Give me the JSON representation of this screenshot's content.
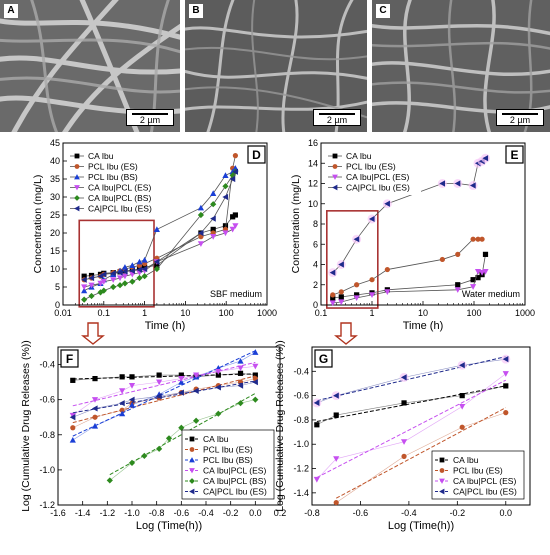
{
  "panels": [
    {
      "label": "A",
      "scale": "2 µm"
    },
    {
      "label": "B",
      "scale": "2 µm"
    },
    {
      "label": "C",
      "scale": "2 µm"
    }
  ],
  "colors": {
    "CA Ibu": "#000000",
    "PCL Ibu (ES)": "#c0562b",
    "PCL Ibu (BS)": "#1a3fd6",
    "CA Ibu|PCL (ES)": "#c64ff0",
    "CA Ibu|PCL (BS)": "#2d8a1e",
    "CA|PCL Ibu (ES)": "#1f2a8c",
    "highlight": "#a83232",
    "arrow": "#b0341f"
  },
  "chart_data": [
    {
      "panel": "D",
      "type": "line",
      "xlabel": "Time (h)",
      "ylabel": "Concentration (mg/L)",
      "xscale": "log",
      "xlim": [
        0.01,
        1000
      ],
      "ylim": [
        0,
        45
      ],
      "xticks": [
        0.01,
        0.1,
        1,
        10,
        100,
        1000
      ],
      "xtick_labels": [
        "0.01",
        "0.1",
        "1",
        "10",
        "100",
        "1000"
      ],
      "yticks": [
        0,
        5,
        10,
        15,
        20,
        25,
        30,
        35,
        40,
        45
      ],
      "annotation": "SBF medium",
      "legend_position": "top-left",
      "series": [
        {
          "name": "CA Ibu",
          "x": [
            0.033,
            0.05,
            0.083,
            0.1,
            0.17,
            0.25,
            0.33,
            0.5,
            0.75,
            1,
            2,
            24,
            48,
            96,
            144,
            168
          ],
          "y": [
            8,
            8.2,
            8.5,
            8.8,
            9,
            9.2,
            9.5,
            9.7,
            10,
            10.5,
            11,
            20,
            21,
            22,
            24.5,
            25
          ]
        },
        {
          "name": "PCL Ibu (ES)",
          "x": [
            0.033,
            0.05,
            0.083,
            0.1,
            0.17,
            0.25,
            0.33,
            0.5,
            0.75,
            1,
            2,
            24,
            48,
            96,
            144,
            168
          ],
          "y": [
            7,
            7.5,
            8,
            8.5,
            9,
            9.5,
            10,
            10.5,
            11,
            11.5,
            13,
            19,
            20,
            21,
            38,
            41.5
          ]
        },
        {
          "name": "PCL Ibu (BS)",
          "x": [
            0.033,
            0.05,
            0.083,
            0.1,
            0.17,
            0.25,
            0.33,
            0.5,
            0.75,
            1,
            2,
            24,
            48,
            96,
            144,
            168
          ],
          "y": [
            4,
            5,
            6,
            7,
            8.5,
            9.5,
            10.5,
            11,
            12,
            12.5,
            21,
            27,
            31,
            36,
            37,
            38
          ]
        },
        {
          "name": "CA Ibu|PCL (ES)",
          "x": [
            0.033,
            0.05,
            0.083,
            0.1,
            0.17,
            0.25,
            0.33,
            0.5,
            0.75,
            1,
            2,
            24,
            48,
            96,
            144,
            168
          ],
          "y": [
            5,
            5.5,
            6,
            6.5,
            7,
            7.5,
            8,
            8.5,
            9,
            9.5,
            12,
            17,
            19,
            20,
            21,
            22
          ]
        },
        {
          "name": "CA Ibu|PCL (BS)",
          "x": [
            0.033,
            0.05,
            0.083,
            0.1,
            0.17,
            0.25,
            0.33,
            0.5,
            0.75,
            1,
            2,
            24,
            48,
            96,
            144,
            168
          ],
          "y": [
            1.5,
            2.5,
            3.5,
            4,
            5,
            5.5,
            6,
            6.5,
            7.5,
            8,
            10,
            25,
            28,
            33,
            36,
            37
          ]
        },
        {
          "name": "CA|PCL Ibu (ES)",
          "x": [
            0.033,
            0.05,
            0.083,
            0.1,
            0.17,
            0.25,
            0.33,
            0.5,
            0.75,
            1,
            2,
            24,
            48,
            96,
            144,
            168
          ],
          "y": [
            7,
            7.5,
            8,
            8.5,
            8.8,
            9,
            9.3,
            9.5,
            9.8,
            10,
            12,
            20,
            24,
            30,
            35,
            37
          ]
        }
      ]
    },
    {
      "panel": "E",
      "type": "line",
      "xlabel": "Time (h)",
      "ylabel": "Concentration (mg/L)",
      "xscale": "log",
      "xlim": [
        0.1,
        1000
      ],
      "ylim": [
        0,
        16
      ],
      "xticks": [
        0.1,
        1,
        10,
        100,
        1000
      ],
      "xtick_labels": [
        "0.1",
        "1",
        "10",
        "100",
        "1000"
      ],
      "yticks": [
        0,
        2,
        4,
        6,
        8,
        10,
        12,
        14,
        16
      ],
      "annotation": "Water medium",
      "legend_position": "top-left",
      "series": [
        {
          "name": "CA Ibu",
          "x": [
            0.17,
            0.25,
            0.5,
            1,
            2,
            48,
            96,
            120,
            144,
            168
          ],
          "y": [
            0.7,
            0.8,
            1,
            1.2,
            1.5,
            2,
            2.5,
            2.7,
            3,
            5
          ]
        },
        {
          "name": "PCL Ibu (ES)",
          "x": [
            0.17,
            0.25,
            0.5,
            1,
            2,
            24,
            48,
            96,
            120,
            144
          ],
          "y": [
            1,
            1.3,
            2,
            2.5,
            3.5,
            4.5,
            5,
            6.5,
            6.5,
            6.5
          ]
        },
        {
          "name": "CA Ibu|PCL (ES)",
          "x": [
            0.17,
            0.25,
            0.5,
            1,
            2,
            48,
            96,
            120,
            144,
            168
          ],
          "y": [
            0.2,
            0.3,
            0.7,
            1,
            1.3,
            1.5,
            1.8,
            3.3,
            3.2,
            3.3
          ]
        },
        {
          "name": "CA|PCL Ibu (ES)",
          "x": [
            0.17,
            0.25,
            0.5,
            1,
            2,
            24,
            48,
            96,
            120,
            144,
            168
          ],
          "y": [
            3.2,
            4,
            6.5,
            8.5,
            10,
            12,
            12,
            11.8,
            14,
            14.2,
            14.5
          ]
        }
      ]
    },
    {
      "panel": "F",
      "type": "scatter",
      "xlabel": "Log (Time(h))",
      "ylabel": "Log (Cumulative Drug Releases (%))",
      "xlim": [
        -1.6,
        0.2
      ],
      "ylim": [
        -1.2,
        -0.3
      ],
      "xticks": [
        -1.6,
        -1.4,
        -1.2,
        -1.0,
        -0.8,
        -0.6,
        -0.4,
        -0.2,
        0.0,
        0.2
      ],
      "xtick_labels": [
        "-1.6",
        "-1.4",
        "-1.2",
        "-1.0",
        "-0.8",
        "-0.6",
        "-0.4",
        "-0.2",
        "0.0",
        "0.2"
      ],
      "yticks": [
        -1.2,
        -1.0,
        -0.8,
        -0.6,
        -0.4
      ],
      "ytick_labels": [
        "-1.2",
        "-1.0",
        "-0.8",
        "-0.6",
        "-0.4"
      ],
      "legend_position": "bottom-right",
      "series": [
        {
          "name": "CA Ibu",
          "x": [
            -1.48,
            -1.3,
            -1.08,
            -1.0,
            -0.78,
            -0.6,
            -0.48,
            -0.3,
            -0.12,
            0.0
          ],
          "y": [
            -0.49,
            -0.48,
            -0.47,
            -0.47,
            -0.46,
            -0.46,
            -0.47,
            -0.46,
            -0.45,
            -0.46
          ]
        },
        {
          "name": "PCL Ibu (ES)",
          "x": [
            -1.48,
            -1.3,
            -1.08,
            -1.0,
            -0.78,
            -0.6,
            -0.48,
            -0.3,
            -0.12,
            0.0
          ],
          "y": [
            -0.76,
            -0.7,
            -0.66,
            -0.62,
            -0.59,
            -0.56,
            -0.54,
            -0.52,
            -0.5,
            -0.48
          ]
        },
        {
          "name": "PCL Ibu (BS)",
          "x": [
            -1.48,
            -1.3,
            -1.08,
            -1.0,
            -0.78,
            -0.6,
            -0.48,
            -0.3,
            -0.12,
            0.0
          ],
          "y": [
            -0.83,
            -0.75,
            -0.68,
            -0.63,
            -0.57,
            -0.5,
            -0.47,
            -0.42,
            -0.38,
            -0.33
          ]
        },
        {
          "name": "CA Ibu|PCL (ES)",
          "x": [
            -1.48,
            -1.3,
            -1.08,
            -1.0,
            -0.78,
            -0.6,
            -0.48,
            -0.3,
            -0.12,
            0.0
          ],
          "y": [
            -0.69,
            -0.6,
            -0.55,
            -0.52,
            -0.5,
            -0.48,
            -0.46,
            -0.44,
            -0.42,
            -0.41
          ]
        },
        {
          "name": "CA Ibu|PCL (BS)",
          "x": [
            -1.18,
            -1.0,
            -0.9,
            -0.78,
            -0.7,
            -0.6,
            -0.48,
            -0.3,
            -0.12,
            0.0
          ],
          "y": [
            -1.06,
            -0.96,
            -0.92,
            -0.88,
            -0.82,
            -0.76,
            -0.72,
            -0.68,
            -0.62,
            -0.6
          ]
        },
        {
          "name": "CA|PCL Ibu (ES)",
          "x": [
            -1.48,
            -1.3,
            -1.08,
            -1.0,
            -0.78,
            -0.6,
            -0.48,
            -0.3,
            -0.12,
            0.0
          ],
          "y": [
            -0.7,
            -0.65,
            -0.62,
            -0.6,
            -0.58,
            -0.56,
            -0.55,
            -0.53,
            -0.52,
            -0.5
          ]
        }
      ]
    },
    {
      "panel": "G",
      "type": "scatter",
      "xlabel": "Log (Time(h))",
      "ylabel": "Log (Cumulative Drug Releases (%))",
      "xlim": [
        -0.8,
        0.1
      ],
      "ylim": [
        -1.5,
        -0.2
      ],
      "xticks": [
        -0.8,
        -0.6,
        -0.4,
        -0.2,
        0.0
      ],
      "xtick_labels": [
        "-0.8",
        "-0.6",
        "-0.4",
        "-0.2",
        "0.0"
      ],
      "yticks": [
        -1.4,
        -1.2,
        -1.0,
        -0.8,
        -0.6,
        -0.4
      ],
      "ytick_labels": [
        "-1.4",
        "-1.2",
        "-1.0",
        "-0.8",
        "-0.6",
        "-0.4"
      ],
      "legend_position": "bottom-right",
      "series": [
        {
          "name": "CA Ibu",
          "x": [
            -0.78,
            -0.7,
            -0.42,
            -0.18,
            0.0
          ],
          "y": [
            -0.84,
            -0.76,
            -0.66,
            -0.6,
            -0.52
          ]
        },
        {
          "name": "PCL Ibu (ES)",
          "x": [
            -0.7,
            -0.42,
            -0.18,
            0.0
          ],
          "y": [
            -1.48,
            -1.1,
            -0.86,
            -0.74
          ]
        },
        {
          "name": "CA Ibu|PCL (ES)",
          "x": [
            -0.78,
            -0.7,
            -0.42,
            -0.18,
            0.0
          ],
          "y": [
            -1.29,
            -1.12,
            -0.98,
            -0.69,
            -0.42
          ]
        },
        {
          "name": "CA|PCL Ibu (ES)",
          "x": [
            -0.78,
            -0.7,
            -0.42,
            -0.18,
            0.0
          ],
          "y": [
            -0.66,
            -0.6,
            -0.45,
            -0.35,
            -0.3
          ]
        }
      ]
    }
  ]
}
